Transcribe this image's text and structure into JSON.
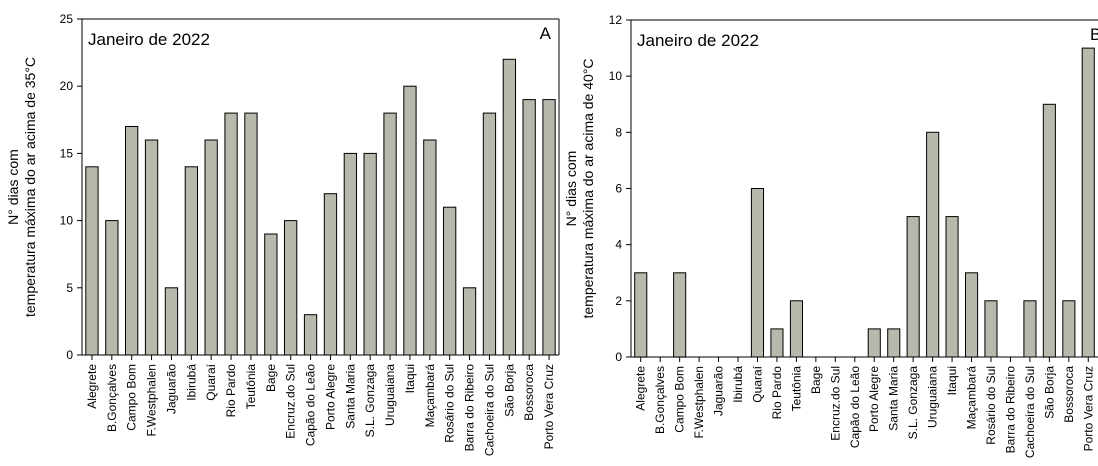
{
  "chart_data": [
    {
      "type": "bar",
      "panel": "A",
      "title": "Janeiro de 2022",
      "ylabel": [
        "N° dias com",
        "temperatura máxima do ar acima de 35°C"
      ],
      "ylim": [
        0,
        25
      ],
      "yticks": [
        0,
        5,
        10,
        15,
        20,
        25
      ],
      "categories": [
        "Alegrete",
        "B.Gonçalves",
        "Campo Bom",
        "F.Westphalen",
        "Jaguarão",
        "Ibirubá",
        "Quaraí",
        "Rio Pardo",
        "Teutônia",
        "Bage",
        "Encruz.do Sul",
        "Capão do Leão",
        "Porto Alegre",
        "Santa Maria",
        "S.L. Gonzaga",
        "Uruguaiana",
        "Itaqui",
        "Maçambará",
        "Rosário do Sul",
        "Barra do Ribeiro",
        "Cachoeira do Sul",
        "São Borja",
        "Bossoroca",
        "Porto Vera Cruz"
      ],
      "values": [
        14,
        10,
        17,
        16,
        5,
        14,
        16,
        18,
        18,
        9,
        10,
        3,
        12,
        15,
        15,
        18,
        20,
        16,
        11,
        5,
        18,
        22,
        19,
        19
      ],
      "grid": false,
      "bar_color": "#b8b8ac"
    },
    {
      "type": "bar",
      "panel": "B",
      "title": "Janeiro de 2022",
      "ylabel": [
        "N° dias com",
        "temperatura máxima do ar acima de 40°C"
      ],
      "ylim": [
        0,
        12
      ],
      "yticks": [
        0,
        2,
        4,
        6,
        8,
        10,
        12
      ],
      "categories": [
        "Alegrete",
        "B.Gonçalves",
        "Campo Bom",
        "F.Westphalen",
        "Jaguarão",
        "Ibirubá",
        "Quaraí",
        "Rio Pardo",
        "Teutônia",
        "Bage",
        "Encruz.do Sul",
        "Capão do Leão",
        "Porto Alegre",
        "Santa Maria",
        "S.L. Gonzaga",
        "Uruguaiana",
        "Itaqui",
        "Maçambará",
        "Rosário do Sul",
        "Barra do Ribeiro",
        "Cachoeira do Sul",
        "São Borja",
        "Bossoroca",
        "Porto Vera Cruz"
      ],
      "values": [
        3,
        0,
        3,
        0,
        0,
        0,
        6,
        1,
        2,
        0,
        0,
        0,
        1,
        1,
        5,
        8,
        5,
        3,
        2,
        0,
        2,
        9,
        2,
        11
      ],
      "grid": false,
      "bar_color": "#b8b8ac"
    }
  ]
}
